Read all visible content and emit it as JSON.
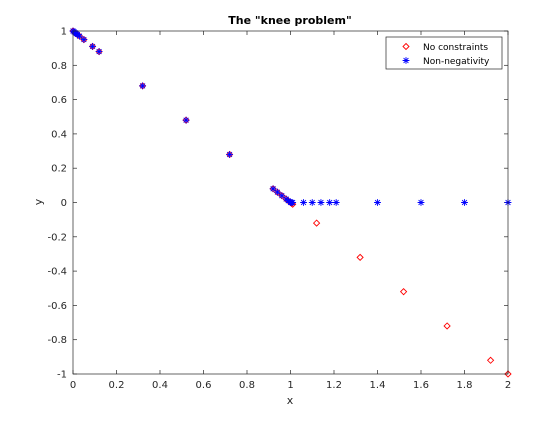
{
  "chart_data": {
    "type": "scatter",
    "title": "The \"knee problem\"",
    "xlabel": "x",
    "ylabel": "y",
    "xlim": [
      0,
      2
    ],
    "ylim": [
      -1,
      1
    ],
    "x_ticks": [
      0,
      0.2,
      0.4,
      0.6,
      0.8,
      1,
      1.2,
      1.4,
      1.6,
      1.8,
      2
    ],
    "x_tick_labels": [
      "0",
      "0.2",
      "0.4",
      "0.6",
      "0.8",
      "1",
      "1.2",
      "1.4",
      "1.6",
      "1.8",
      "2"
    ],
    "y_ticks": [
      1,
      0.8,
      0.6,
      0.4,
      0.2,
      0,
      -0.2,
      -0.4,
      -0.6,
      -0.8,
      -1
    ],
    "y_tick_labels": [
      "1",
      "0.8",
      "0.6",
      "0.4",
      "0.2",
      "0",
      "-0.2",
      "-0.4",
      "-0.6",
      "-0.8",
      "-1"
    ],
    "grid": false,
    "legend_position": "top-right",
    "series": [
      {
        "name": "No constraints",
        "marker": "diamond",
        "color": "#ff0000",
        "x": [
          0,
          0.005,
          0.01,
          0.015,
          0.02,
          0.03,
          0.05,
          0.09,
          0.12,
          0.32,
          0.52,
          0.72,
          0.92,
          0.94,
          0.96,
          0.98,
          0.99,
          1.0,
          1.005,
          1.01,
          1.12,
          1.32,
          1.52,
          1.72,
          1.92,
          2.0
        ],
        "y": [
          1.0,
          0.995,
          0.99,
          0.985,
          0.98,
          0.97,
          0.95,
          0.91,
          0.88,
          0.68,
          0.48,
          0.28,
          0.08,
          0.06,
          0.04,
          0.02,
          0.01,
          0.0,
          -0.005,
          -0.01,
          -0.12,
          -0.32,
          -0.52,
          -0.72,
          -0.92,
          -1.0
        ]
      },
      {
        "name": "Non-negativity",
        "marker": "asterisk",
        "color": "#0000ff",
        "x": [
          0,
          0.005,
          0.01,
          0.015,
          0.02,
          0.03,
          0.05,
          0.09,
          0.12,
          0.32,
          0.52,
          0.72,
          0.92,
          0.94,
          0.96,
          0.98,
          0.99,
          1.0,
          1.005,
          1.01,
          1.06,
          1.1,
          1.14,
          1.18,
          1.21,
          1.4,
          1.6,
          1.8,
          2.0
        ],
        "y": [
          1.0,
          0.995,
          0.99,
          0.985,
          0.98,
          0.97,
          0.95,
          0.91,
          0.88,
          0.68,
          0.48,
          0.28,
          0.08,
          0.06,
          0.04,
          0.02,
          0.01,
          0.0,
          0.0,
          0.0,
          0.0,
          0.0,
          0.0,
          0.0,
          0.0,
          0.0,
          0.0,
          0.0,
          0.0
        ]
      }
    ]
  }
}
